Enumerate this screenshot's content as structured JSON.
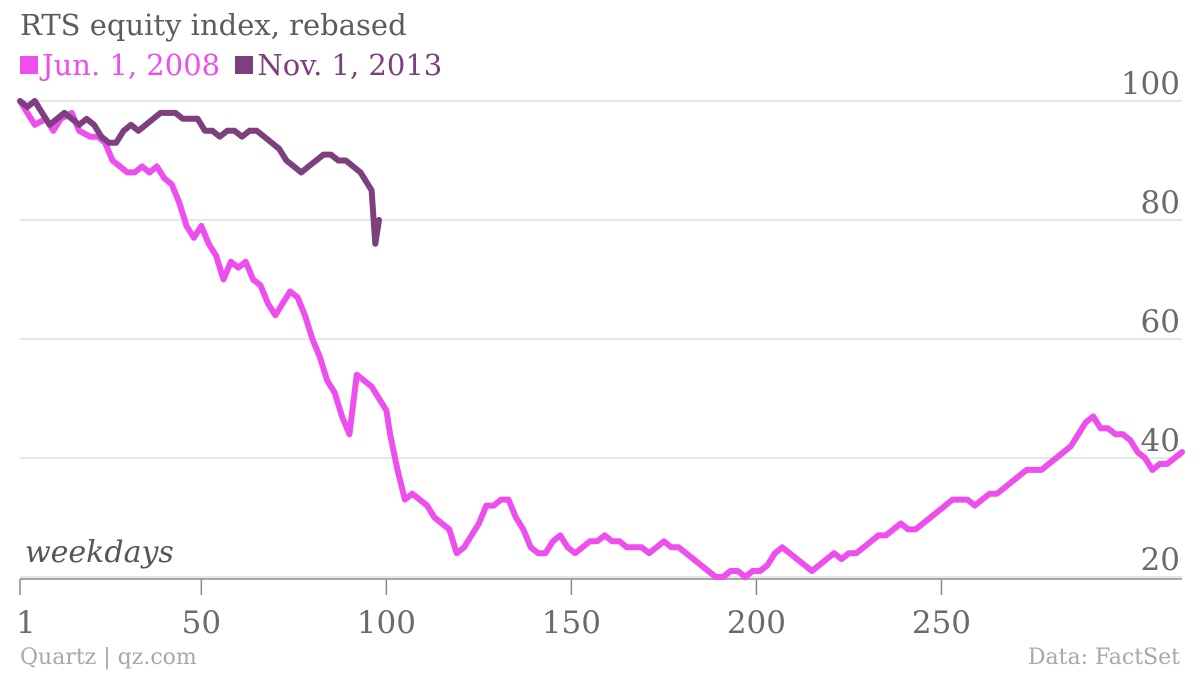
{
  "chart_data": {
    "type": "line",
    "title": "RTS equity index, rebased",
    "xlabel": "weekdays",
    "ylabel": "",
    "x_ticks": [
      1,
      50,
      100,
      150,
      200,
      250
    ],
    "x_tick_labels": [
      "1",
      "50",
      "100",
      "150",
      "200",
      "250"
    ],
    "y_ticks": [
      20,
      40,
      60,
      80,
      100
    ],
    "y_tick_labels": [
      "20",
      "40",
      "60",
      "80",
      "100"
    ],
    "xlim": [
      1,
      315
    ],
    "ylim": [
      20,
      100
    ],
    "grid": "horizontal",
    "legend": "top-left",
    "series": [
      {
        "name": "Jun. 1, 2008",
        "color": "#ee4eee",
        "points": [
          [
            1,
            100
          ],
          [
            3,
            98
          ],
          [
            5,
            96
          ],
          [
            8,
            97
          ],
          [
            10,
            95
          ],
          [
            12,
            97
          ],
          [
            15,
            98
          ],
          [
            17,
            95
          ],
          [
            20,
            94
          ],
          [
            22,
            94
          ],
          [
            24,
            93
          ],
          [
            26,
            90
          ],
          [
            28,
            89
          ],
          [
            30,
            88
          ],
          [
            32,
            88
          ],
          [
            34,
            89
          ],
          [
            36,
            88
          ],
          [
            38,
            89
          ],
          [
            40,
            87
          ],
          [
            42,
            86
          ],
          [
            44,
            83
          ],
          [
            46,
            79
          ],
          [
            48,
            77
          ],
          [
            50,
            79
          ],
          [
            52,
            76
          ],
          [
            54,
            74
          ],
          [
            56,
            70
          ],
          [
            58,
            73
          ],
          [
            60,
            72
          ],
          [
            62,
            73
          ],
          [
            64,
            70
          ],
          [
            66,
            69
          ],
          [
            68,
            66
          ],
          [
            70,
            64
          ],
          [
            72,
            66
          ],
          [
            74,
            68
          ],
          [
            76,
            67
          ],
          [
            78,
            64
          ],
          [
            80,
            60
          ],
          [
            82,
            57
          ],
          [
            84,
            53
          ],
          [
            86,
            51
          ],
          [
            88,
            47
          ],
          [
            90,
            44
          ],
          [
            92,
            54
          ],
          [
            94,
            53
          ],
          [
            96,
            52
          ],
          [
            98,
            50
          ],
          [
            100,
            48
          ],
          [
            101,
            44
          ],
          [
            103,
            38
          ],
          [
            105,
            33
          ],
          [
            107,
            34
          ],
          [
            109,
            33
          ],
          [
            111,
            32
          ],
          [
            113,
            30
          ],
          [
            115,
            29
          ],
          [
            117,
            28
          ],
          [
            119,
            24
          ],
          [
            121,
            25
          ],
          [
            123,
            27
          ],
          [
            125,
            29
          ],
          [
            127,
            32
          ],
          [
            129,
            32
          ],
          [
            131,
            33
          ],
          [
            133,
            33
          ],
          [
            135,
            30
          ],
          [
            137,
            28
          ],
          [
            139,
            25
          ],
          [
            141,
            24
          ],
          [
            143,
            24
          ],
          [
            145,
            26
          ],
          [
            147,
            27
          ],
          [
            149,
            25
          ],
          [
            151,
            24
          ],
          [
            153,
            25
          ],
          [
            155,
            26
          ],
          [
            157,
            26
          ],
          [
            159,
            27
          ],
          [
            161,
            26
          ],
          [
            163,
            26
          ],
          [
            165,
            25
          ],
          [
            167,
            25
          ],
          [
            169,
            25
          ],
          [
            171,
            24
          ],
          [
            173,
            25
          ],
          [
            175,
            26
          ],
          [
            177,
            25
          ],
          [
            179,
            25
          ],
          [
            181,
            24
          ],
          [
            183,
            23
          ],
          [
            185,
            22
          ],
          [
            187,
            21
          ],
          [
            189,
            20
          ],
          [
            191,
            20
          ],
          [
            193,
            21
          ],
          [
            195,
            21
          ],
          [
            197,
            20
          ],
          [
            199,
            21
          ],
          [
            201,
            21
          ],
          [
            203,
            22
          ],
          [
            205,
            24
          ],
          [
            207,
            25
          ],
          [
            209,
            24
          ],
          [
            211,
            23
          ],
          [
            213,
            22
          ],
          [
            215,
            21
          ],
          [
            217,
            22
          ],
          [
            219,
            23
          ],
          [
            221,
            24
          ],
          [
            223,
            23
          ],
          [
            225,
            24
          ],
          [
            227,
            24
          ],
          [
            229,
            25
          ],
          [
            231,
            26
          ],
          [
            233,
            27
          ],
          [
            235,
            27
          ],
          [
            237,
            28
          ],
          [
            239,
            29
          ],
          [
            241,
            28
          ],
          [
            243,
            28
          ],
          [
            245,
            29
          ],
          [
            247,
            30
          ],
          [
            249,
            31
          ],
          [
            251,
            32
          ],
          [
            253,
            33
          ],
          [
            255,
            33
          ],
          [
            257,
            33
          ],
          [
            259,
            32
          ],
          [
            261,
            33
          ],
          [
            263,
            34
          ],
          [
            265,
            34
          ],
          [
            267,
            35
          ],
          [
            269,
            36
          ],
          [
            271,
            37
          ],
          [
            273,
            38
          ],
          [
            275,
            38
          ],
          [
            277,
            38
          ],
          [
            279,
            39
          ],
          [
            281,
            40
          ],
          [
            283,
            41
          ],
          [
            285,
            42
          ],
          [
            287,
            44
          ],
          [
            289,
            46
          ],
          [
            291,
            47
          ],
          [
            293,
            45
          ],
          [
            295,
            45
          ],
          [
            297,
            44
          ],
          [
            299,
            44
          ],
          [
            301,
            43
          ],
          [
            303,
            41
          ],
          [
            305,
            40
          ],
          [
            307,
            38
          ],
          [
            309,
            39
          ],
          [
            311,
            39
          ],
          [
            313,
            40
          ],
          [
            315,
            41
          ]
        ]
      },
      {
        "name": "Nov. 1, 2013",
        "color": "#7e3f7e",
        "points": [
          [
            1,
            100
          ],
          [
            3,
            99
          ],
          [
            5,
            100
          ],
          [
            7,
            98
          ],
          [
            9,
            96
          ],
          [
            11,
            97
          ],
          [
            13,
            98
          ],
          [
            15,
            97
          ],
          [
            17,
            96
          ],
          [
            19,
            97
          ],
          [
            21,
            96
          ],
          [
            23,
            94
          ],
          [
            25,
            93
          ],
          [
            27,
            93
          ],
          [
            29,
            95
          ],
          [
            31,
            96
          ],
          [
            33,
            95
          ],
          [
            35,
            96
          ],
          [
            37,
            97
          ],
          [
            39,
            98
          ],
          [
            41,
            98
          ],
          [
            43,
            98
          ],
          [
            45,
            97
          ],
          [
            47,
            97
          ],
          [
            49,
            97
          ],
          [
            51,
            95
          ],
          [
            53,
            95
          ],
          [
            55,
            94
          ],
          [
            57,
            95
          ],
          [
            59,
            95
          ],
          [
            61,
            94
          ],
          [
            63,
            95
          ],
          [
            65,
            95
          ],
          [
            67,
            94
          ],
          [
            69,
            93
          ],
          [
            71,
            92
          ],
          [
            73,
            90
          ],
          [
            75,
            89
          ],
          [
            77,
            88
          ],
          [
            79,
            89
          ],
          [
            81,
            90
          ],
          [
            83,
            91
          ],
          [
            85,
            91
          ],
          [
            87,
            90
          ],
          [
            89,
            90
          ],
          [
            91,
            89
          ],
          [
            93,
            88
          ],
          [
            95,
            86
          ],
          [
            96,
            85
          ],
          [
            97,
            76
          ],
          [
            98,
            80
          ]
        ]
      }
    ]
  },
  "legend": {
    "items": [
      {
        "label": "Jun. 1, 2008",
        "color": "#ee4eee"
      },
      {
        "label": "Nov. 1, 2013",
        "color": "#7e3f7e"
      }
    ]
  },
  "footer": {
    "source_left": "Quartz | qz.com",
    "source_right": "Data: FactSet"
  }
}
